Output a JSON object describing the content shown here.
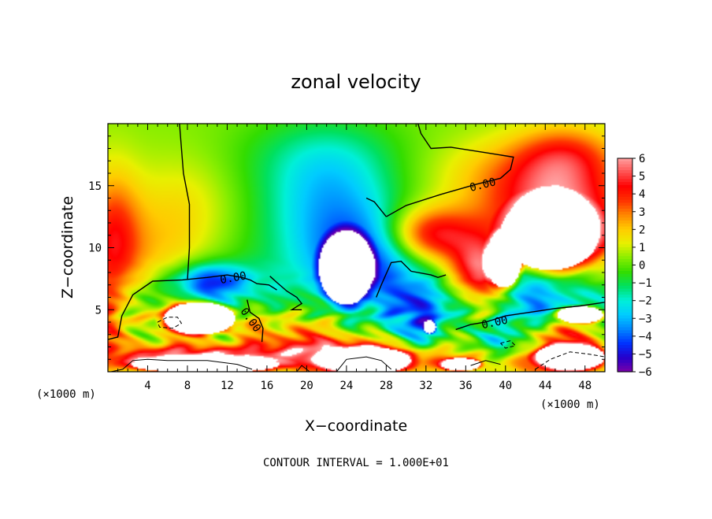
{
  "chart_data": {
    "type": "heatmap",
    "title": "zonal velocity",
    "xlabel": "X−coordinate",
    "ylabel": "Z−coordinate",
    "x_scale_note": "(×1000 m)",
    "y_scale_note": "(×1000 m)",
    "xlim": [
      0,
      50
    ],
    "ylim": [
      0,
      20
    ],
    "x_ticks": [
      4,
      8,
      12,
      16,
      20,
      24,
      28,
      32,
      36,
      40,
      44,
      48
    ],
    "y_ticks": [
      5,
      10,
      15
    ],
    "x_tick_labels": [
      "4",
      "8",
      "12",
      "16",
      "20",
      "24",
      "28",
      "32",
      "36",
      "40",
      "44",
      "48"
    ],
    "y_tick_labels": [
      "5",
      "10",
      "15"
    ],
    "colorbar": {
      "min": -6,
      "max": 6,
      "ticks": [
        6,
        5,
        4,
        3,
        2,
        1,
        0,
        -1,
        -2,
        -3,
        -4,
        -5,
        -6
      ],
      "tick_labels": [
        "6",
        "5",
        "4",
        "3",
        "2",
        "1",
        "0",
        "−1",
        "−2",
        "−3",
        "−4",
        "−5",
        "−6"
      ],
      "colors": [
        "#7a00a8",
        "#2400cc",
        "#0033ff",
        "#0088ff",
        "#00ccff",
        "#00f0d8",
        "#00e060",
        "#33dd00",
        "#88ee00",
        "#e8f000",
        "#ffcc00",
        "#ff8800",
        "#ff3300",
        "#ff0000",
        "#ff5050",
        "#ffa0a0"
      ]
    },
    "contour_labels": [
      {
        "text": "0.00",
        "x": 12.6,
        "z": 7.6,
        "angle": -10
      },
      {
        "text": "0.00",
        "x": 14.4,
        "z": 4.2,
        "angle": 55
      },
      {
        "text": "0.00",
        "x": 37.7,
        "z": 15.1,
        "angle": -14
      },
      {
        "text": "0.00",
        "x": 38.9,
        "z": 4.0,
        "angle": -12
      }
    ],
    "blobs": [
      {
        "x": 0.5,
        "z": 10.5,
        "rx": 2.8,
        "rz": 5.5,
        "v": 3.6
      },
      {
        "x": 0.0,
        "z": 3.5,
        "rx": 1.6,
        "rz": 3.0,
        "v": 2.2
      },
      {
        "x": 5.0,
        "z": 8.0,
        "rx": 5.0,
        "rz": 5.0,
        "v": 1.6
      },
      {
        "x": 7.5,
        "z": 13.5,
        "rx": 5.0,
        "rz": 4.0,
        "v": 1.0
      },
      {
        "x": 22.5,
        "z": 13.5,
        "rx": 6.5,
        "rz": 4.5,
        "v": -2.6
      },
      {
        "x": 21.5,
        "z": 17.5,
        "rx": 8.5,
        "rz": 3.5,
        "v": -1.4
      },
      {
        "x": 18.5,
        "z": 9.0,
        "rx": 6.5,
        "rz": 5.0,
        "v": -0.9
      },
      {
        "x": 26.0,
        "z": 8.5,
        "rx": 5.5,
        "rz": 4.0,
        "v": -4.5
      },
      {
        "x": 9.0,
        "z": 5.5,
        "rx": 7.0,
        "rz": 2.8,
        "v": -4.0
      },
      {
        "x": 10.5,
        "z": 7.5,
        "rx": 3.5,
        "rz": 1.2,
        "v": -3.0
      },
      {
        "x": 32.0,
        "z": 4.5,
        "rx": 4.0,
        "rz": 3.0,
        "v": -4.2
      },
      {
        "x": 41.5,
        "z": 7.5,
        "rx": 3.0,
        "rz": 4.5,
        "v": -3.2
      },
      {
        "x": 46.5,
        "z": 6.0,
        "rx": 5.0,
        "rz": 2.5,
        "v": -3.0
      },
      {
        "x": 40.5,
        "z": 2.5,
        "rx": 3.5,
        "rz": 1.6,
        "v": -3.6
      },
      {
        "x": 32.5,
        "z": 11.0,
        "rx": 4.5,
        "rz": 2.2,
        "v": 4.5
      },
      {
        "x": 45.0,
        "z": 12.0,
        "rx": 7.0,
        "rz": 4.0,
        "v": 6.0
      },
      {
        "x": 42.0,
        "z": 16.0,
        "rx": 9.0,
        "rz": 3.0,
        "v": 1.8
      },
      {
        "x": 46.0,
        "z": 17.5,
        "rx": 5.0,
        "rz": 2.5,
        "v": 2.5
      },
      {
        "x": 9.0,
        "z": 1.2,
        "rx": 9.0,
        "rz": 1.0,
        "v": 6.0
      },
      {
        "x": 8.0,
        "z": 4.3,
        "rx": 3.5,
        "rz": 1.5,
        "v": 6.5
      },
      {
        "x": 25.0,
        "z": 1.2,
        "rx": 6.0,
        "rz": 1.4,
        "v": 6.5
      },
      {
        "x": 19.0,
        "z": 2.8,
        "rx": 5.0,
        "rz": 2.0,
        "v": 2.6
      },
      {
        "x": 14.5,
        "z": 4.0,
        "rx": 3.0,
        "rz": 2.0,
        "v": 1.8
      },
      {
        "x": 34.0,
        "z": 0.8,
        "rx": 4.0,
        "rz": 1.0,
        "v": 3.0
      },
      {
        "x": 37.5,
        "z": 8.0,
        "rx": 3.0,
        "rz": 2.5,
        "v": 5.0
      },
      {
        "x": 45.0,
        "z": 1.2,
        "rx": 5.0,
        "rz": 1.5,
        "v": 6.0
      },
      {
        "x": 44.5,
        "z": 3.2,
        "rx": 4.0,
        "rz": 1.0,
        "v": 3.5
      },
      {
        "x": 35.5,
        "z": 3.0,
        "rx": 2.5,
        "rz": 1.5,
        "v": 1.5
      }
    ],
    "saturated_regions": [
      {
        "x": 24.0,
        "z": 8.4,
        "rx": 2.8,
        "rz": 3.0,
        "v": -7,
        "color": "#ffffff"
      },
      {
        "x": 32.4,
        "z": 3.6,
        "rx": 0.6,
        "rz": 0.5,
        "v": -7,
        "color": "#ffffff"
      },
      {
        "x": 9.2,
        "z": 4.3,
        "rx": 3.6,
        "rz": 1.3,
        "v": 7,
        "color": "#ffffff"
      },
      {
        "x": 44.5,
        "z": 11.2,
        "rx": 5.0,
        "rz": 3.0,
        "v": 7,
        "color": "#ffffff"
      },
      {
        "x": 39.8,
        "z": 9.0,
        "rx": 1.8,
        "rz": 2.2,
        "v": 7,
        "color": "#ffffff"
      },
      {
        "x": 47.5,
        "z": 4.6,
        "rx": 2.3,
        "rz": 0.7,
        "v": 7,
        "color": "#ffffff"
      },
      {
        "x": 9.8,
        "z": 0.6,
        "rx": 7.5,
        "rz": 0.7,
        "v": 7,
        "color": "#ffffff"
      },
      {
        "x": 26.0,
        "z": 0.9,
        "rx": 4.5,
        "rz": 1.1,
        "v": 7,
        "color": "#ffffff"
      },
      {
        "x": 35.5,
        "z": 0.6,
        "rx": 2.0,
        "rz": 0.5,
        "v": 7,
        "color": "#ffffff"
      },
      {
        "x": 46.5,
        "z": 1.2,
        "rx": 3.5,
        "rz": 1.1,
        "v": 7,
        "color": "#ffffff"
      }
    ],
    "zero_contours": [
      [
        [
          0.0,
          2.6
        ],
        [
          1.0,
          2.8
        ],
        [
          1.4,
          4.5
        ],
        [
          2.5,
          6.2
        ],
        [
          4.5,
          7.3
        ],
        [
          7.5,
          7.4
        ],
        [
          10.0,
          7.6
        ],
        [
          12.0,
          7.8
        ],
        [
          13.5,
          7.6
        ],
        [
          14.3,
          7.4
        ]
      ],
      [
        [
          14.3,
          7.4
        ],
        [
          15.0,
          7.1
        ],
        [
          16.2,
          7.0
        ],
        [
          17.0,
          6.6
        ]
      ],
      [
        [
          8.0,
          7.4
        ],
        [
          8.2,
          10.0
        ],
        [
          8.2,
          13.5
        ],
        [
          7.6,
          16.0
        ],
        [
          7.2,
          20.0
        ]
      ],
      [
        [
          14.0,
          5.8
        ],
        [
          14.3,
          4.8
        ],
        [
          15.2,
          4.3
        ],
        [
          15.6,
          3.5
        ],
        [
          15.5,
          2.4
        ]
      ],
      [
        [
          16.3,
          7.7
        ],
        [
          17.0,
          7.2
        ],
        [
          18.0,
          6.5
        ],
        [
          19.0,
          6.0
        ],
        [
          19.5,
          5.5
        ],
        [
          18.5,
          5.0
        ],
        [
          19.5,
          5.0
        ]
      ],
      [
        [
          27.0,
          6.0
        ],
        [
          27.5,
          7.0
        ],
        [
          28.5,
          8.8
        ],
        [
          29.5,
          8.9
        ],
        [
          30.5,
          8.1
        ],
        [
          32.5,
          7.8
        ],
        [
          33.2,
          7.6
        ],
        [
          34.0,
          7.8
        ]
      ],
      [
        [
          28.0,
          12.5
        ],
        [
          30.0,
          13.4
        ],
        [
          33.5,
          14.3
        ],
        [
          37.0,
          15.1
        ],
        [
          39.5,
          15.6
        ],
        [
          40.5,
          16.3
        ],
        [
          40.8,
          17.3
        ],
        [
          38.5,
          17.6
        ],
        [
          34.5,
          18.1
        ],
        [
          32.5,
          18.0
        ],
        [
          31.5,
          19.2
        ],
        [
          31.2,
          20.0
        ]
      ],
      [
        [
          35.0,
          3.4
        ],
        [
          36.5,
          3.8
        ],
        [
          38.0,
          4.0
        ],
        [
          40.0,
          4.5
        ],
        [
          42.5,
          4.8
        ],
        [
          45.0,
          5.1
        ],
        [
          47.5,
          5.3
        ],
        [
          50.0,
          5.6
        ]
      ],
      [
        [
          26.0,
          14.0
        ],
        [
          26.8,
          13.7
        ],
        [
          28.0,
          12.5
        ]
      ]
    ],
    "negative_contours": [
      [
        [
          5.0,
          4.0
        ],
        [
          6.0,
          4.4
        ],
        [
          7.0,
          4.4
        ],
        [
          7.4,
          3.9
        ],
        [
          6.5,
          3.5
        ],
        [
          5.2,
          3.6
        ],
        [
          5.0,
          4.0
        ]
      ],
      [
        [
          39.5,
          2.3
        ],
        [
          40.5,
          2.5
        ],
        [
          41.0,
          2.1
        ],
        [
          40.0,
          1.9
        ],
        [
          39.5,
          2.3
        ]
      ],
      [
        [
          43.0,
          0.2
        ],
        [
          44.5,
          1.0
        ],
        [
          46.5,
          1.6
        ],
        [
          48.5,
          1.4
        ],
        [
          50.0,
          1.2
        ]
      ]
    ],
    "bottom_contours": [
      [
        [
          0.3,
          0.0
        ],
        [
          1.5,
          0.2
        ],
        [
          2.5,
          0.9
        ],
        [
          4.0,
          1.0
        ],
        [
          6.0,
          0.9
        ],
        [
          10.0,
          0.9
        ],
        [
          13.0,
          0.6
        ],
        [
          14.5,
          0.2
        ]
      ],
      [
        [
          23.0,
          0.0
        ],
        [
          24.0,
          1.0
        ],
        [
          26.0,
          1.2
        ],
        [
          27.5,
          0.9
        ],
        [
          28.5,
          0.2
        ]
      ],
      [
        [
          36.5,
          0.5
        ],
        [
          38.0,
          0.9
        ],
        [
          39.5,
          0.6
        ]
      ],
      [
        [
          19.0,
          0.0
        ],
        [
          19.5,
          0.5
        ],
        [
          20.3,
          0.0
        ]
      ]
    ],
    "footer_text": "CONTOUR INTERVAL = 1.000E+01"
  }
}
